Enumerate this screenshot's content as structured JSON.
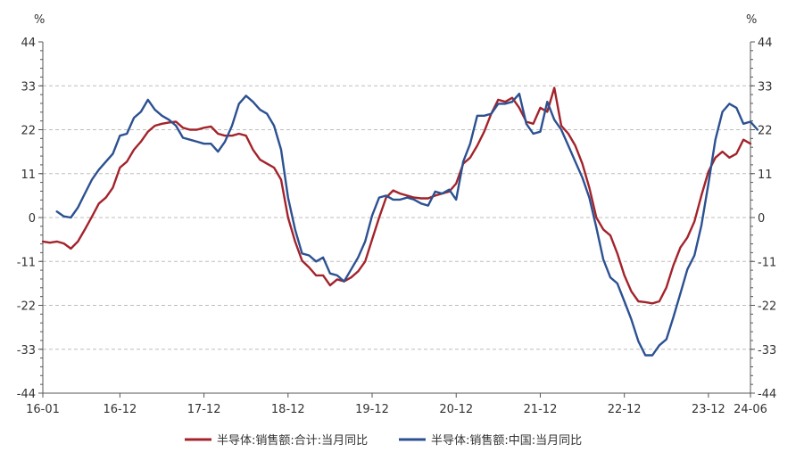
{
  "chart_data": {
    "type": "line",
    "unit_left": "%",
    "unit_right": "%",
    "ylim": [
      -44,
      44
    ],
    "yticks": [
      44,
      33,
      22,
      11,
      0,
      -11,
      -22,
      -33,
      -44
    ],
    "x_start": "2016-01",
    "x_end": "2024-06",
    "xtick_labels": [
      {
        "label": "16-01",
        "date": "2016-01"
      },
      {
        "label": "16-12",
        "date": "2016-12"
      },
      {
        "label": "17-12",
        "date": "2017-12"
      },
      {
        "label": "18-12",
        "date": "2018-12"
      },
      {
        "label": "19-12",
        "date": "2019-12"
      },
      {
        "label": "20-12",
        "date": "2020-12"
      },
      {
        "label": "21-12",
        "date": "2021-12"
      },
      {
        "label": "22-12",
        "date": "2022-12"
      },
      {
        "label": "23-12",
        "date": "2023-12"
      },
      {
        "label": "24-06",
        "date": "2024-06"
      }
    ],
    "grid": "horizontal dashed",
    "legend_position": "bottom",
    "series": [
      {
        "name": "半导体:销售额:合计:当月同比",
        "color": "#a3232b",
        "points": [
          [
            "2016-01",
            -6.0
          ],
          [
            "2016-02",
            -6.3
          ],
          [
            "2016-03",
            -6.0
          ],
          [
            "2016-04",
            -6.5
          ],
          [
            "2016-05",
            -7.8
          ],
          [
            "2016-06",
            -6.0
          ],
          [
            "2016-07",
            -3.0
          ],
          [
            "2016-08",
            0.2
          ],
          [
            "2016-09",
            3.5
          ],
          [
            "2016-10",
            5.0
          ],
          [
            "2016-11",
            7.5
          ],
          [
            "2016-12",
            12.5
          ],
          [
            "2017-01",
            14.0
          ],
          [
            "2017-02",
            17.0
          ],
          [
            "2017-03",
            19.0
          ],
          [
            "2017-04",
            21.5
          ],
          [
            "2017-05",
            23.0
          ],
          [
            "2017-06",
            23.5
          ],
          [
            "2017-07",
            23.8
          ],
          [
            "2017-08",
            24.0
          ],
          [
            "2017-09",
            22.5
          ],
          [
            "2017-10",
            22.0
          ],
          [
            "2017-11",
            22.0
          ],
          [
            "2017-12",
            22.5
          ],
          [
            "2018-01",
            22.8
          ],
          [
            "2018-02",
            21.0
          ],
          [
            "2018-03",
            20.5
          ],
          [
            "2018-04",
            20.5
          ],
          [
            "2018-05",
            21.0
          ],
          [
            "2018-06",
            20.5
          ],
          [
            "2018-07",
            17.0
          ],
          [
            "2018-08",
            14.5
          ],
          [
            "2018-09",
            13.5
          ],
          [
            "2018-10",
            12.5
          ],
          [
            "2018-11",
            9.5
          ],
          [
            "2018-12",
            0.0
          ],
          [
            "2019-01",
            -6.0
          ],
          [
            "2019-02",
            -10.8
          ],
          [
            "2019-03",
            -12.5
          ],
          [
            "2019-04",
            -14.5
          ],
          [
            "2019-05",
            -14.5
          ],
          [
            "2019-06",
            -17.0
          ],
          [
            "2019-07",
            -15.5
          ],
          [
            "2019-08",
            -16.0
          ],
          [
            "2019-09",
            -15.0
          ],
          [
            "2019-10",
            -13.5
          ],
          [
            "2019-11",
            -11.0
          ],
          [
            "2019-12",
            -5.5
          ],
          [
            "2020-01",
            0.0
          ],
          [
            "2020-02",
            5.0
          ],
          [
            "2020-03",
            6.8
          ],
          [
            "2020-04",
            6.0
          ],
          [
            "2020-05",
            5.5
          ],
          [
            "2020-06",
            5.0
          ],
          [
            "2020-07",
            4.8
          ],
          [
            "2020-08",
            4.8
          ],
          [
            "2020-09",
            5.5
          ],
          [
            "2020-10",
            6.0
          ],
          [
            "2020-11",
            6.5
          ],
          [
            "2020-12",
            8.5
          ],
          [
            "2021-01",
            13.5
          ],
          [
            "2021-02",
            15.0
          ],
          [
            "2021-03",
            18.0
          ],
          [
            "2021-04",
            21.5
          ],
          [
            "2021-05",
            26.0
          ],
          [
            "2021-06",
            29.5
          ],
          [
            "2021-07",
            29.0
          ],
          [
            "2021-08",
            30.0
          ],
          [
            "2021-09",
            27.5
          ],
          [
            "2021-10",
            24.0
          ],
          [
            "2021-11",
            23.5
          ],
          [
            "2021-12",
            27.5
          ],
          [
            "2022-01",
            26.5
          ],
          [
            "2022-02",
            32.5
          ],
          [
            "2022-03",
            23.0
          ],
          [
            "2022-04",
            21.0
          ],
          [
            "2022-05",
            18.0
          ],
          [
            "2022-06",
            13.5
          ],
          [
            "2022-07",
            7.5
          ],
          [
            "2022-08",
            0.0
          ],
          [
            "2022-09",
            -3.0
          ],
          [
            "2022-10",
            -4.5
          ],
          [
            "2022-11",
            -9.0
          ],
          [
            "2022-12",
            -14.5
          ],
          [
            "2023-01",
            -18.5
          ],
          [
            "2023-02",
            -21.0
          ],
          [
            "2023-03",
            -21.2
          ],
          [
            "2023-04",
            -21.5
          ],
          [
            "2023-05",
            -21.0
          ],
          [
            "2023-06",
            -17.5
          ],
          [
            "2023-07",
            -12.0
          ],
          [
            "2023-08",
            -7.5
          ],
          [
            "2023-09",
            -5.0
          ],
          [
            "2023-10",
            -1.0
          ],
          [
            "2023-11",
            5.5
          ],
          [
            "2023-12",
            11.5
          ],
          [
            "2024-01",
            15.0
          ],
          [
            "2024-02",
            16.5
          ],
          [
            "2024-03",
            15.0
          ],
          [
            "2024-04",
            16.0
          ],
          [
            "2024-05",
            19.5
          ],
          [
            "2024-06",
            18.5
          ]
        ]
      },
      {
        "name": "半导体:销售额:中国:当月同比",
        "color": "#2c5191",
        "points": [
          [
            "2016-03",
            1.5
          ],
          [
            "2016-04",
            0.3
          ],
          [
            "2016-05",
            0.0
          ],
          [
            "2016-06",
            2.5
          ],
          [
            "2016-07",
            6.0
          ],
          [
            "2016-08",
            9.5
          ],
          [
            "2016-09",
            12.0
          ],
          [
            "2016-10",
            14.0
          ],
          [
            "2016-11",
            16.0
          ],
          [
            "2016-12",
            20.5
          ],
          [
            "2017-01",
            21.0
          ],
          [
            "2017-02",
            25.0
          ],
          [
            "2017-03",
            26.5
          ],
          [
            "2017-04",
            29.5
          ],
          [
            "2017-05",
            27.0
          ],
          [
            "2017-06",
            25.5
          ],
          [
            "2017-07",
            24.5
          ],
          [
            "2017-08",
            23.0
          ],
          [
            "2017-09",
            20.0
          ],
          [
            "2017-10",
            19.5
          ],
          [
            "2017-11",
            19.0
          ],
          [
            "2017-12",
            18.5
          ],
          [
            "2018-01",
            18.5
          ],
          [
            "2018-02",
            16.5
          ],
          [
            "2018-03",
            19.0
          ],
          [
            "2018-04",
            23.0
          ],
          [
            "2018-05",
            28.5
          ],
          [
            "2018-06",
            30.5
          ],
          [
            "2018-07",
            29.0
          ],
          [
            "2018-08",
            27.0
          ],
          [
            "2018-09",
            26.0
          ],
          [
            "2018-10",
            23.0
          ],
          [
            "2018-11",
            17.0
          ],
          [
            "2018-12",
            5.0
          ],
          [
            "2019-01",
            -3.0
          ],
          [
            "2019-02",
            -9.0
          ],
          [
            "2019-03",
            -9.5
          ],
          [
            "2019-04",
            -11.0
          ],
          [
            "2019-05",
            -10.0
          ],
          [
            "2019-06",
            -14.0
          ],
          [
            "2019-07",
            -14.5
          ],
          [
            "2019-08",
            -16.0
          ],
          [
            "2019-09",
            -13.0
          ],
          [
            "2019-10",
            -10.0
          ],
          [
            "2019-11",
            -6.0
          ],
          [
            "2019-12",
            0.5
          ],
          [
            "2020-01",
            5.0
          ],
          [
            "2020-02",
            5.5
          ],
          [
            "2020-03",
            4.5
          ],
          [
            "2020-04",
            4.5
          ],
          [
            "2020-05",
            5.0
          ],
          [
            "2020-06",
            4.5
          ],
          [
            "2020-07",
            3.5
          ],
          [
            "2020-08",
            3.0
          ],
          [
            "2020-09",
            6.5
          ],
          [
            "2020-10",
            6.0
          ],
          [
            "2020-11",
            7.0
          ],
          [
            "2020-12",
            4.5
          ],
          [
            "2021-01",
            14.0
          ],
          [
            "2021-02",
            18.5
          ],
          [
            "2021-03",
            25.5
          ],
          [
            "2021-04",
            25.5
          ],
          [
            "2021-05",
            26.0
          ],
          [
            "2021-06",
            28.5
          ],
          [
            "2021-07",
            28.5
          ],
          [
            "2021-08",
            29.0
          ],
          [
            "2021-09",
            31.0
          ],
          [
            "2021-10",
            23.5
          ],
          [
            "2021-11",
            21.0
          ],
          [
            "2021-12",
            21.5
          ],
          [
            "2022-01",
            29.0
          ],
          [
            "2022-02",
            24.5
          ],
          [
            "2022-03",
            22.0
          ],
          [
            "2022-04",
            18.0
          ],
          [
            "2022-05",
            14.0
          ],
          [
            "2022-06",
            10.0
          ],
          [
            "2022-07",
            5.0
          ],
          [
            "2022-08",
            -2.5
          ],
          [
            "2022-09",
            -10.5
          ],
          [
            "2022-10",
            -15.0
          ],
          [
            "2022-11",
            -16.5
          ],
          [
            "2022-12",
            -21.0
          ],
          [
            "2023-01",
            -25.5
          ],
          [
            "2023-02",
            -31.0
          ],
          [
            "2023-03",
            -34.5
          ],
          [
            "2023-04",
            -34.5
          ],
          [
            "2023-05",
            -32.0
          ],
          [
            "2023-06",
            -30.5
          ],
          [
            "2023-07",
            -25.0
          ],
          [
            "2023-08",
            -19.0
          ],
          [
            "2023-09",
            -13.0
          ],
          [
            "2023-10",
            -9.5
          ],
          [
            "2023-11",
            -2.0
          ],
          [
            "2023-12",
            8.5
          ],
          [
            "2024-01",
            19.5
          ],
          [
            "2024-02",
            26.5
          ],
          [
            "2024-03",
            28.5
          ],
          [
            "2024-04",
            27.5
          ],
          [
            "2024-05",
            23.5
          ],
          [
            "2024-06",
            24.0
          ],
          [
            "2024-07",
            22.0
          ]
        ]
      }
    ]
  }
}
